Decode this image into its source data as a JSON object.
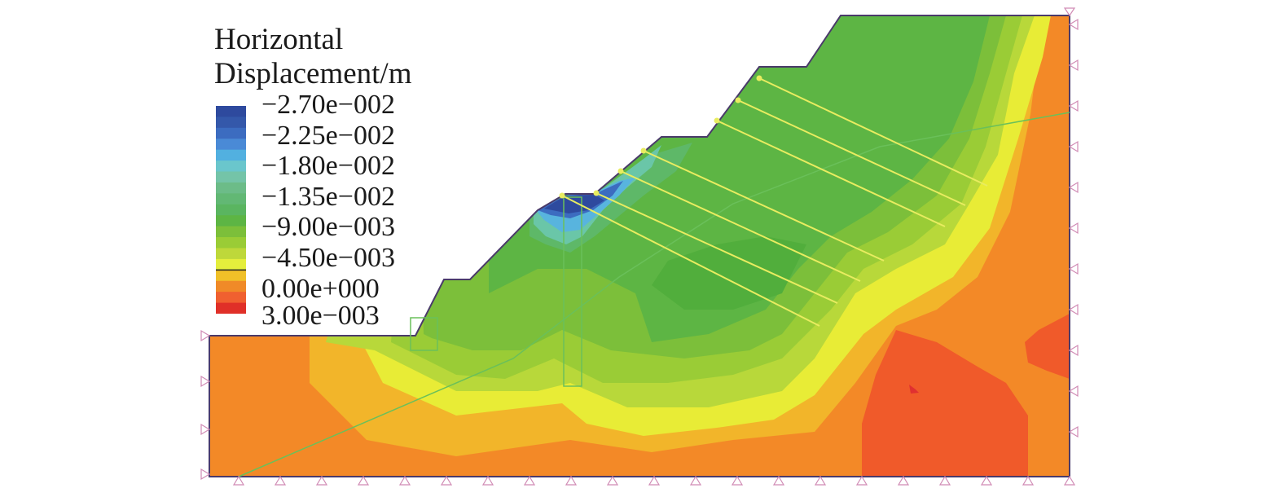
{
  "legend": {
    "title_line1": "Horizontal",
    "title_line2": "Displacement/m",
    "labels": [
      "−2.70e−002",
      "−2.25e−002",
      "−1.80e−002",
      "−1.35e−002",
      "−9.00e−003",
      "−4.50e−003",
      "0.00e+000",
      "3.00e−003"
    ],
    "bands": [
      "#2e4a9e",
      "#3458aa",
      "#3c6cc0",
      "#4a8ad6",
      "#52b0e0",
      "#6ac6cc",
      "#74c4a8",
      "#6cbc88",
      "#62b874",
      "#5ab560",
      "#5db544",
      "#7cbf3a",
      "#9acc36",
      "#bed83a",
      "#e4ee3c",
      "#f0c028",
      "#f08a28",
      "#f06030",
      "#e03028"
    ]
  },
  "colors": {
    "outline": "#4a3a6a",
    "anchor": "#e8ec60",
    "pile": "#6ac05a",
    "slip": "#6ac05a",
    "support": "#d08ab4"
  }
}
